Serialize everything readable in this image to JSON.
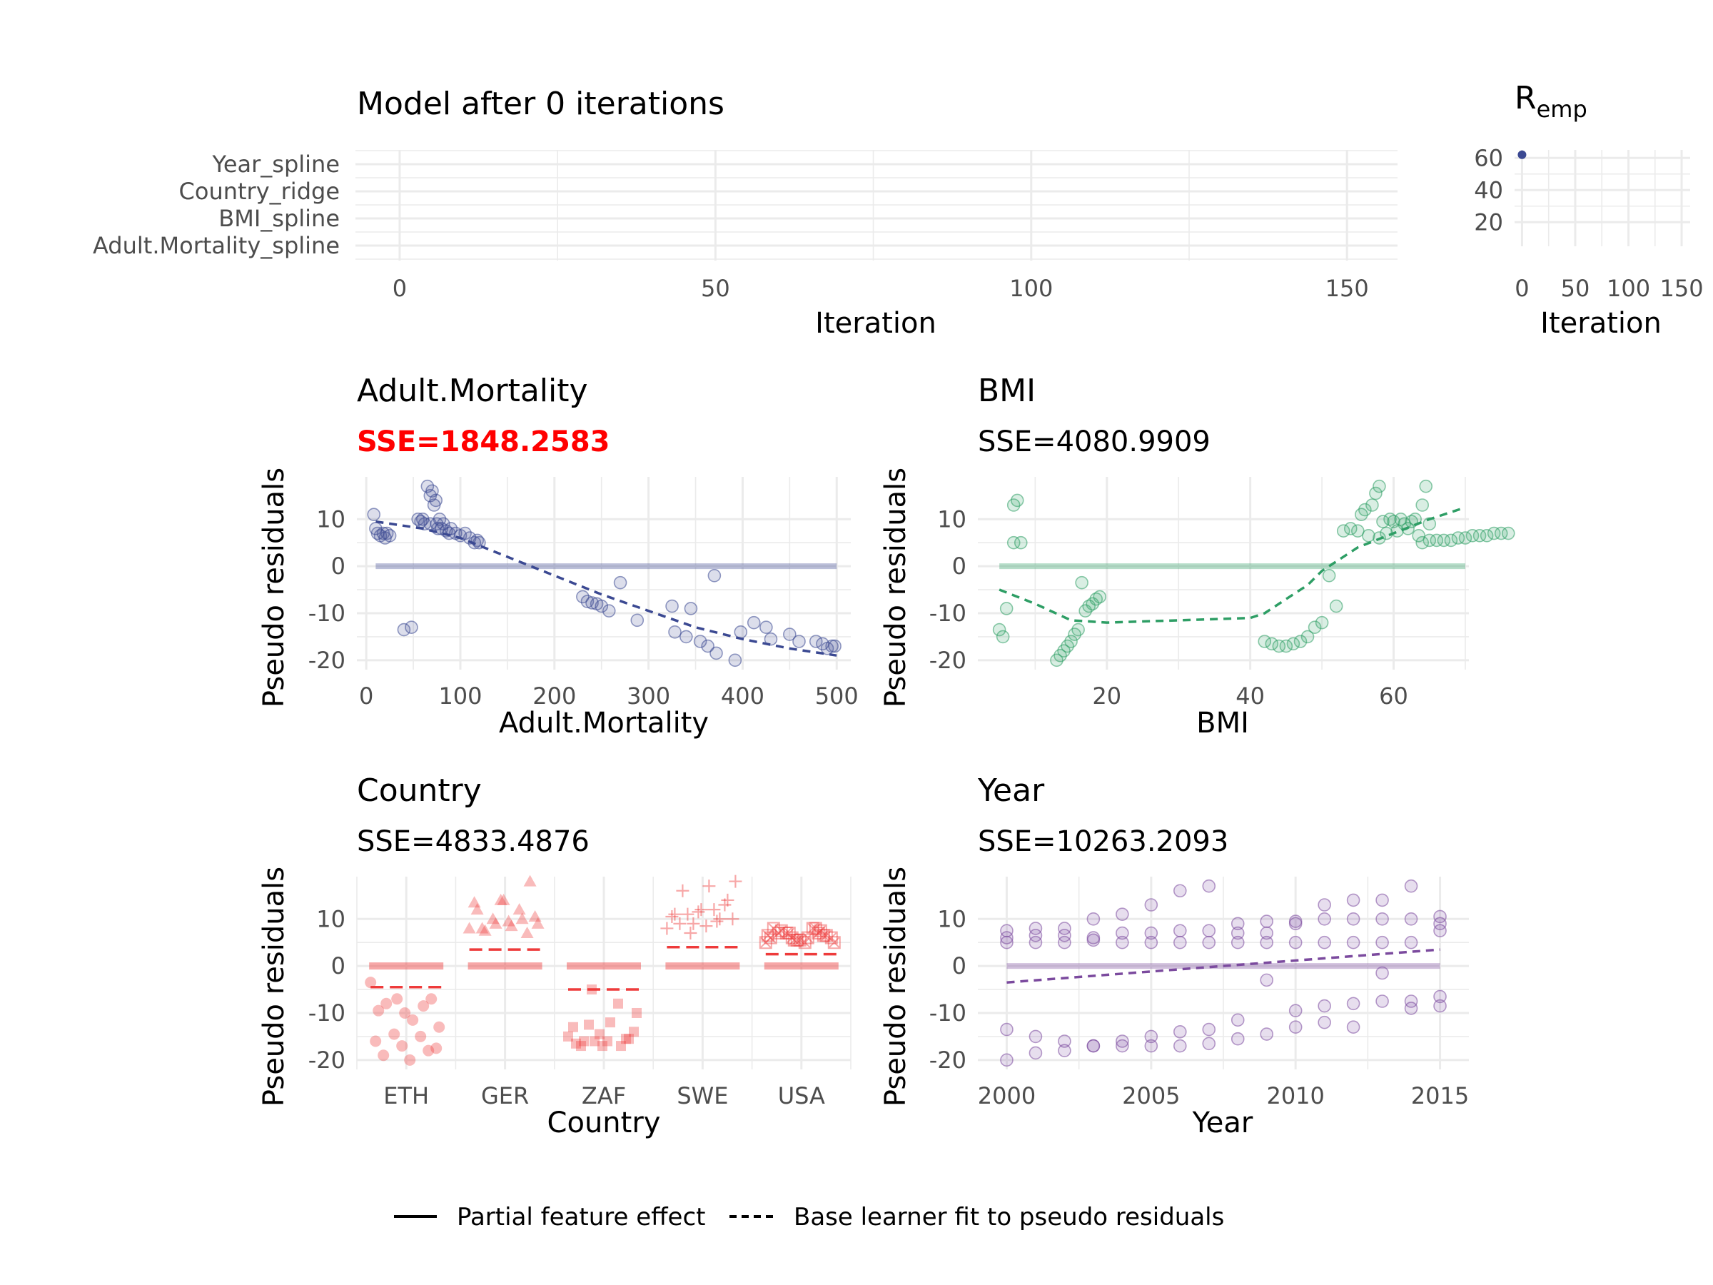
{
  "progress_panel": {
    "title": "Model after 0 iterations",
    "xlabel": "Iteration",
    "categories": [
      "Year_spline",
      "Country_ridge",
      "BMI_spline",
      "Adult.Mortality_spline"
    ],
    "x_ticks": [
      0,
      50,
      100,
      150
    ],
    "xlim": [
      -7,
      158
    ]
  },
  "risk_panel": {
    "title_main": "R",
    "title_sub": "emp",
    "xlabel": "Iteration",
    "x_ticks": [
      0,
      50,
      100,
      150
    ],
    "y_ticks": [
      20,
      40,
      60
    ],
    "xlim": [
      -7,
      158
    ],
    "ylim": [
      5,
      65
    ],
    "points": [
      {
        "x": 0,
        "y": 62
      }
    ],
    "color": "#3b4992"
  },
  "legend": {
    "solid_label": "Partial feature effect",
    "dashed_label": "Base learner fit to pseudo residuals"
  },
  "chart_data": [
    {
      "type": "scatter",
      "title": "Adult.Mortality",
      "sse_label": "SSE=1848.2583",
      "highlight": true,
      "xlabel": "Adult.Mortality",
      "ylabel": "Pseudo residuals",
      "xlim": [
        -10,
        515
      ],
      "ylim": [
        -22,
        19
      ],
      "x_ticks": [
        0,
        100,
        200,
        300,
        400,
        500
      ],
      "y_ticks": [
        -20,
        -10,
        0,
        10
      ],
      "color": "#3b4992",
      "points": [
        [
          8,
          11
        ],
        [
          10,
          8
        ],
        [
          12,
          7
        ],
        [
          15,
          6.5
        ],
        [
          18,
          7
        ],
        [
          20,
          6
        ],
        [
          22,
          7
        ],
        [
          25,
          6.5
        ],
        [
          40,
          -13.5
        ],
        [
          48,
          -13
        ],
        [
          55,
          10
        ],
        [
          58,
          9.5
        ],
        [
          60,
          10
        ],
        [
          62,
          9
        ],
        [
          65,
          17
        ],
        [
          68,
          15
        ],
        [
          68,
          9
        ],
        [
          70,
          16
        ],
        [
          72,
          13
        ],
        [
          74,
          14
        ],
        [
          75,
          9
        ],
        [
          76,
          8
        ],
        [
          78,
          10
        ],
        [
          80,
          8
        ],
        [
          82,
          9
        ],
        [
          85,
          7.5
        ],
        [
          88,
          7
        ],
        [
          90,
          8
        ],
        [
          95,
          7
        ],
        [
          100,
          6.5
        ],
        [
          105,
          7
        ],
        [
          110,
          6
        ],
        [
          115,
          5
        ],
        [
          118,
          5.5
        ],
        [
          120,
          5
        ],
        [
          230,
          -6.5
        ],
        [
          235,
          -7.5
        ],
        [
          240,
          -7.8
        ],
        [
          245,
          -8
        ],
        [
          250,
          -8.5
        ],
        [
          258,
          -9.5
        ],
        [
          270,
          -3.5
        ],
        [
          288,
          -11.5
        ],
        [
          325,
          -8.5
        ],
        [
          328,
          -14
        ],
        [
          340,
          -15
        ],
        [
          345,
          -9
        ],
        [
          355,
          -16
        ],
        [
          363,
          -17
        ],
        [
          370,
          -2
        ],
        [
          372,
          -18.5
        ],
        [
          392,
          -20
        ],
        [
          398,
          -14
        ],
        [
          412,
          -12
        ],
        [
          425,
          -13
        ],
        [
          430,
          -15.5
        ],
        [
          450,
          -14.5
        ],
        [
          460,
          -16
        ],
        [
          478,
          -16
        ],
        [
          485,
          -16.5
        ],
        [
          490,
          -17.5
        ],
        [
          495,
          -17
        ],
        [
          498,
          -17
        ]
      ],
      "effect_line": [
        [
          10,
          0
        ],
        [
          500,
          0
        ]
      ],
      "fit_line": [
        [
          10,
          9.5
        ],
        [
          60,
          8
        ],
        [
          100,
          6
        ],
        [
          150,
          2
        ],
        [
          200,
          -2
        ],
        [
          250,
          -6
        ],
        [
          300,
          -9.5
        ],
        [
          350,
          -13
        ],
        [
          400,
          -15.5
        ],
        [
          450,
          -17.5
        ],
        [
          500,
          -19
        ]
      ]
    },
    {
      "type": "scatter",
      "title": "BMI",
      "sse_label": "SSE=4080.9909",
      "highlight": false,
      "xlabel": "BMI",
      "ylabel": "Pseudo residuals",
      "xlim": [
        2,
        70.5
      ],
      "ylim": [
        -22,
        19
      ],
      "x_ticks": [
        20,
        40,
        60
      ],
      "y_ticks": [
        -20,
        -10,
        0,
        10
      ],
      "color": "#2e9e65",
      "points": [
        [
          5,
          -13.5
        ],
        [
          5.5,
          -15
        ],
        [
          6,
          -9
        ],
        [
          7,
          5
        ],
        [
          7,
          13
        ],
        [
          7.5,
          14
        ],
        [
          8,
          5
        ],
        [
          13,
          -20
        ],
        [
          13.5,
          -19
        ],
        [
          14,
          -18
        ],
        [
          14.5,
          -17
        ],
        [
          15,
          -16
        ],
        [
          15.5,
          -14.5
        ],
        [
          16,
          -13.5
        ],
        [
          16.5,
          -3.5
        ],
        [
          17,
          -9.5
        ],
        [
          17.5,
          -8.5
        ],
        [
          18,
          -8
        ],
        [
          18.5,
          -7
        ],
        [
          19,
          -6.5
        ],
        [
          42,
          -16
        ],
        [
          43,
          -16.5
        ],
        [
          44,
          -17
        ],
        [
          45,
          -17
        ],
        [
          46,
          -16.5
        ],
        [
          47,
          -16
        ],
        [
          48,
          -15
        ],
        [
          49,
          -13
        ],
        [
          50,
          -12
        ],
        [
          51,
          -2
        ],
        [
          52,
          -8.5
        ],
        [
          53,
          7.5
        ],
        [
          54,
          8
        ],
        [
          55,
          7.5
        ],
        [
          55.5,
          11
        ],
        [
          56,
          12
        ],
        [
          56.5,
          6.5
        ],
        [
          57,
          13
        ],
        [
          57.5,
          15.5
        ],
        [
          58,
          17
        ],
        [
          58,
          6
        ],
        [
          58.5,
          9.5
        ],
        [
          59,
          7
        ],
        [
          59.5,
          10
        ],
        [
          60,
          9.5
        ],
        [
          60.5,
          7.5
        ],
        [
          61,
          10
        ],
        [
          61.5,
          9
        ],
        [
          62,
          8
        ],
        [
          62.5,
          9.5
        ],
        [
          63,
          10
        ],
        [
          63.5,
          6.5
        ],
        [
          64,
          13
        ],
        [
          64,
          5
        ],
        [
          64.5,
          17
        ],
        [
          65,
          9
        ],
        [
          65,
          5.5
        ],
        [
          66,
          5.5
        ],
        [
          67,
          5.5
        ],
        [
          68,
          5.5
        ],
        [
          69,
          6
        ],
        [
          70,
          6
        ],
        [
          71,
          6.5
        ],
        [
          72,
          6.5
        ],
        [
          73,
          6.5
        ],
        [
          74,
          7
        ],
        [
          75,
          7
        ],
        [
          76,
          7
        ]
      ],
      "effect_line": [
        [
          5,
          0
        ],
        [
          70,
          0
        ]
      ],
      "fit_line": [
        [
          5,
          -5
        ],
        [
          10,
          -8
        ],
        [
          15,
          -11.5
        ],
        [
          20,
          -12
        ],
        [
          30,
          -11.5
        ],
        [
          40,
          -11
        ],
        [
          42,
          -10
        ],
        [
          45,
          -7
        ],
        [
          48,
          -4
        ],
        [
          50,
          -1
        ],
        [
          55,
          4
        ],
        [
          60,
          7
        ],
        [
          65,
          10
        ],
        [
          70,
          12.5
        ]
      ]
    },
    {
      "type": "scatter",
      "title": "Country",
      "sse_label": "SSE=4833.4876",
      "highlight": false,
      "xlabel": "Country",
      "ylabel": "Pseudo residuals",
      "ylim": [
        -22,
        19
      ],
      "categories": [
        "ETH",
        "GER",
        "ZAF",
        "SWE",
        "USA"
      ],
      "y_ticks": [
        -20,
        -10,
        0,
        10
      ],
      "color": "#ee3b3b",
      "effects": [
        -4.5,
        3.5,
        -5,
        4,
        2.5
      ],
      "points": {
        "ETH": [
          -3.5,
          -7,
          -8.5,
          -9.5,
          -10,
          -7,
          -8,
          -11.5,
          -13,
          -14.5,
          -15,
          -16,
          -17,
          -18,
          -19,
          -20,
          -17.5
        ],
        "GER": [
          8,
          9,
          10,
          12,
          14,
          18,
          7.5,
          8.5,
          9,
          10,
          12,
          13.5,
          14,
          7,
          8,
          9.5,
          10.5
        ],
        "ZAF": [
          -15,
          -16,
          -17,
          -16.5,
          -17,
          -15.5,
          -16,
          -12,
          -10,
          -5,
          -8,
          -13,
          -14.5,
          -15.5,
          -17,
          -16,
          -14,
          -12.5
        ],
        "SWE": [
          8,
          9,
          10,
          11,
          12,
          14,
          16,
          17,
          18,
          7,
          9.5,
          10.5,
          11.5,
          13,
          9,
          8.5,
          10,
          11,
          12
        ],
        "USA": [
          5,
          6,
          7,
          8,
          5.5,
          6.5,
          7.5,
          6,
          5,
          7,
          8,
          6,
          5.5,
          6.5,
          7,
          5,
          6,
          7,
          8,
          6.5,
          5.5,
          7.5
        ]
      }
    },
    {
      "type": "scatter",
      "title": "Year",
      "sse_label": "SSE=10263.2093",
      "highlight": false,
      "xlabel": "Year",
      "ylabel": "Pseudo residuals",
      "xlim": [
        1999,
        2016
      ],
      "ylim": [
        -22,
        19
      ],
      "x_ticks": [
        2000,
        2005,
        2010,
        2015
      ],
      "y_ticks": [
        -20,
        -10,
        0,
        10
      ],
      "color": "#7b4a9e",
      "points": [
        [
          2000,
          7.5
        ],
        [
          2000,
          5
        ],
        [
          2000,
          6
        ],
        [
          2000,
          -13.5
        ],
        [
          2000,
          -20
        ],
        [
          2001,
          8
        ],
        [
          2001,
          5
        ],
        [
          2001,
          6.5
        ],
        [
          2001,
          -15
        ],
        [
          2001,
          -18.5
        ],
        [
          2002,
          8
        ],
        [
          2002,
          5
        ],
        [
          2002,
          6.5
        ],
        [
          2002,
          -16
        ],
        [
          2002,
          -18
        ],
        [
          2003,
          10
        ],
        [
          2003,
          5.5
        ],
        [
          2003,
          6
        ],
        [
          2003,
          -17
        ],
        [
          2003,
          -17
        ],
        [
          2004,
          11
        ],
        [
          2004,
          5
        ],
        [
          2004,
          7
        ],
        [
          2004,
          -16
        ],
        [
          2004,
          -17
        ],
        [
          2005,
          13
        ],
        [
          2005,
          5
        ],
        [
          2005,
          7
        ],
        [
          2005,
          -15
        ],
        [
          2005,
          -17
        ],
        [
          2006,
          16
        ],
        [
          2006,
          5
        ],
        [
          2006,
          7.5
        ],
        [
          2006,
          -14
        ],
        [
          2006,
          -17
        ],
        [
          2007,
          17
        ],
        [
          2007,
          5
        ],
        [
          2007,
          7.5
        ],
        [
          2007,
          -13.5
        ],
        [
          2007,
          -16.5
        ],
        [
          2008,
          9
        ],
        [
          2008,
          5
        ],
        [
          2008,
          7
        ],
        [
          2008,
          -11.5
        ],
        [
          2008,
          -15.5
        ],
        [
          2009,
          9.5
        ],
        [
          2009,
          5
        ],
        [
          2009,
          7
        ],
        [
          2009,
          -3
        ],
        [
          2009,
          -14.5
        ],
        [
          2010,
          9.5
        ],
        [
          2010,
          5
        ],
        [
          2010,
          9
        ],
        [
          2010,
          -9.5
        ],
        [
          2010,
          -13
        ],
        [
          2011,
          13
        ],
        [
          2011,
          5
        ],
        [
          2011,
          10
        ],
        [
          2011,
          -8.5
        ],
        [
          2011,
          -12
        ],
        [
          2012,
          14
        ],
        [
          2012,
          5
        ],
        [
          2012,
          10
        ],
        [
          2012,
          -8
        ],
        [
          2012,
          -13
        ],
        [
          2013,
          14
        ],
        [
          2013,
          5
        ],
        [
          2013,
          10
        ],
        [
          2013,
          -1.5
        ],
        [
          2013,
          -7.5
        ],
        [
          2014,
          17
        ],
        [
          2014,
          5
        ],
        [
          2014,
          10
        ],
        [
          2014,
          -7.5
        ],
        [
          2014,
          -9
        ],
        [
          2015,
          10.5
        ],
        [
          2015,
          7.5
        ],
        [
          2015,
          9
        ],
        [
          2015,
          -6.5
        ],
        [
          2015,
          -8.5
        ]
      ],
      "effect_line": [
        [
          2000,
          0
        ],
        [
          2015,
          0
        ]
      ],
      "fit_line": [
        [
          2000,
          -3.5
        ],
        [
          2015,
          3.5
        ]
      ]
    }
  ]
}
